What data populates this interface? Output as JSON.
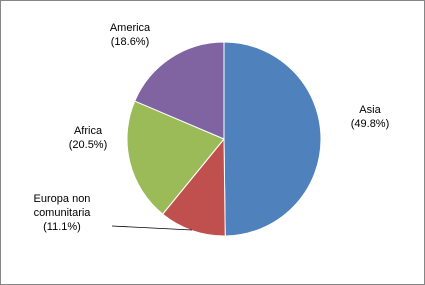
{
  "chart_data": {
    "type": "pie",
    "categories": [
      "Asia",
      "Europa non comunitaria",
      "Africa",
      "America"
    ],
    "values": [
      49.8,
      11.1,
      20.5,
      18.6
    ],
    "value_labels": [
      "(49.8%)",
      "(11.1%)",
      "(20.5%)",
      "(18.6%)"
    ],
    "colors": [
      "#4f81bd",
      "#c0504d",
      "#9bbb59",
      "#8064a2"
    ]
  }
}
